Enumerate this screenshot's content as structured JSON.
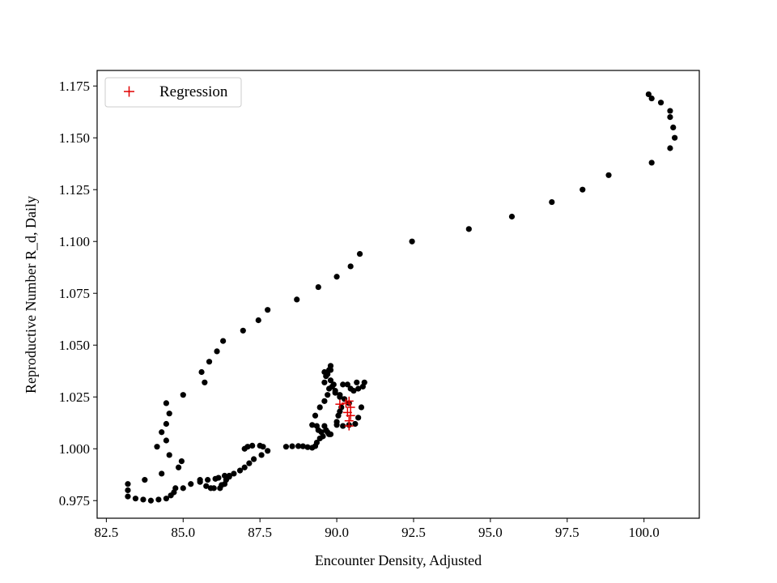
{
  "chart_data": {
    "type": "scatter",
    "xlabel": "Encounter Density, Adjusted",
    "ylabel": "Reproductive Number R_d, Daily",
    "xlim": [
      82.2,
      101.8
    ],
    "ylim": [
      0.9665,
      1.1825
    ],
    "xticks": [
      82.5,
      85.0,
      87.5,
      90.0,
      92.5,
      95.0,
      97.5,
      100.0
    ],
    "xtick_labels": [
      "82.5",
      "85.0",
      "87.5",
      "90.0",
      "92.5",
      "95.0",
      "97.5",
      "100.0"
    ],
    "yticks": [
      0.975,
      1.0,
      1.025,
      1.05,
      1.075,
      1.1,
      1.125,
      1.15,
      1.175
    ],
    "ytick_labels": [
      "0.975",
      "1.000",
      "1.025",
      "1.050",
      "1.075",
      "1.100",
      "1.125",
      "1.150",
      "1.175"
    ],
    "grid": false,
    "legend": {
      "placement": "top-left",
      "entries": [
        "Regression"
      ]
    },
    "series": [
      {
        "marker": "dot",
        "color": "#000000",
        "points": [
          [
            101.0,
            1.15
          ],
          [
            100.95,
            1.155
          ],
          [
            100.85,
            1.16
          ],
          [
            100.85,
            1.163
          ],
          [
            100.55,
            1.167
          ],
          [
            100.25,
            1.169
          ],
          [
            100.15,
            1.171
          ],
          [
            100.85,
            1.145
          ],
          [
            100.25,
            1.138
          ],
          [
            98.85,
            1.132
          ],
          [
            98.0,
            1.125
          ],
          [
            97.0,
            1.119
          ],
          [
            95.7,
            1.112
          ],
          [
            94.3,
            1.106
          ],
          [
            92.45,
            1.1
          ],
          [
            90.75,
            1.094
          ],
          [
            90.45,
            1.088
          ],
          [
            90.0,
            1.083
          ],
          [
            89.4,
            1.078
          ],
          [
            88.7,
            1.072
          ],
          [
            87.75,
            1.067
          ],
          [
            87.45,
            1.062
          ],
          [
            86.95,
            1.057
          ],
          [
            86.3,
            1.052
          ],
          [
            86.1,
            1.047
          ],
          [
            85.85,
            1.042
          ],
          [
            85.6,
            1.037
          ],
          [
            85.7,
            1.032
          ],
          [
            85.0,
            1.026
          ],
          [
            84.45,
            1.022
          ],
          [
            84.55,
            1.017
          ],
          [
            84.45,
            1.012
          ],
          [
            84.3,
            1.008
          ],
          [
            84.45,
            1.004
          ],
          [
            84.15,
            1.001
          ],
          [
            84.55,
            0.997
          ],
          [
            84.95,
            0.994
          ],
          [
            84.85,
            0.991
          ],
          [
            84.3,
            0.988
          ],
          [
            83.75,
            0.985
          ],
          [
            83.2,
            0.983
          ],
          [
            83.2,
            0.98
          ],
          [
            83.2,
            0.977
          ],
          [
            83.45,
            0.976
          ],
          [
            83.7,
            0.9755
          ],
          [
            83.95,
            0.975
          ],
          [
            84.2,
            0.9755
          ],
          [
            84.45,
            0.976
          ],
          [
            84.6,
            0.9775
          ],
          [
            84.7,
            0.979
          ],
          [
            84.75,
            0.981
          ],
          [
            85.0,
            0.981
          ],
          [
            85.25,
            0.983
          ],
          [
            85.55,
            0.984
          ],
          [
            85.55,
            0.985
          ],
          [
            85.8,
            0.985
          ],
          [
            86.05,
            0.9855
          ],
          [
            86.15,
            0.986
          ],
          [
            86.35,
            0.987
          ],
          [
            86.5,
            0.987
          ],
          [
            86.65,
            0.988
          ],
          [
            86.85,
            0.9895
          ],
          [
            87.0,
            0.991
          ],
          [
            87.15,
            0.993
          ],
          [
            87.3,
            0.995
          ],
          [
            87.55,
            0.997
          ],
          [
            87.75,
            0.999
          ],
          [
            87.0,
            1.0
          ],
          [
            87.1,
            1.001
          ],
          [
            87.25,
            1.0015
          ],
          [
            87.5,
            1.0015
          ],
          [
            87.6,
            1.001
          ],
          [
            85.75,
            0.982
          ],
          [
            85.9,
            0.981
          ],
          [
            86.0,
            0.981
          ],
          [
            86.2,
            0.981
          ],
          [
            86.35,
            0.983
          ],
          [
            86.25,
            0.9825
          ],
          [
            86.4,
            0.985
          ],
          [
            86.5,
            0.9865
          ],
          [
            88.35,
            1.001
          ],
          [
            88.55,
            1.0012
          ],
          [
            88.75,
            1.0013
          ],
          [
            88.9,
            1.0012
          ],
          [
            89.05,
            1.0008
          ],
          [
            89.2,
            1.0005
          ],
          [
            89.3,
            1.0013
          ],
          [
            89.35,
            1.003
          ],
          [
            89.45,
            1.005
          ],
          [
            89.55,
            1.006
          ],
          [
            89.7,
            1.008
          ],
          [
            89.8,
            1.007
          ],
          [
            89.4,
            1.009
          ],
          [
            89.5,
            1.008
          ],
          [
            89.65,
            1.009
          ],
          [
            89.75,
            1.007
          ],
          [
            89.6,
            1.011
          ],
          [
            89.35,
            1.011
          ],
          [
            89.2,
            1.0115
          ],
          [
            89.3,
            1.016
          ],
          [
            89.45,
            1.02
          ],
          [
            89.6,
            1.023
          ],
          [
            89.7,
            1.026
          ],
          [
            89.75,
            1.029
          ],
          [
            89.6,
            1.032
          ],
          [
            89.65,
            1.035
          ],
          [
            89.75,
            1.038
          ],
          [
            89.8,
            1.04
          ],
          [
            89.7,
            1.036
          ],
          [
            89.8,
            1.033
          ],
          [
            89.85,
            1.03
          ],
          [
            89.95,
            1.028
          ],
          [
            90.1,
            1.026
          ],
          [
            90.25,
            1.024
          ],
          [
            90.4,
            1.022
          ],
          [
            90.15,
            1.02
          ],
          [
            90.1,
            1.018
          ],
          [
            90.05,
            1.016
          ],
          [
            90.0,
            1.013
          ],
          [
            90.0,
            1.0115
          ],
          [
            90.2,
            1.011
          ],
          [
            90.4,
            1.0115
          ],
          [
            90.6,
            1.012
          ],
          [
            90.7,
            1.015
          ],
          [
            90.8,
            1.02
          ],
          [
            90.55,
            1.028
          ],
          [
            90.7,
            1.029
          ],
          [
            90.85,
            1.03
          ],
          [
            90.65,
            1.032
          ],
          [
            90.9,
            1.032
          ],
          [
            90.45,
            1.029
          ],
          [
            90.35,
            1.031
          ],
          [
            90.2,
            1.031
          ],
          [
            89.9,
            1.031
          ],
          [
            89.95,
            1.027
          ],
          [
            90.1,
            1.025
          ],
          [
            89.6,
            1.037
          ],
          [
            89.8,
            1.038
          ]
        ]
      },
      {
        "name": "Regression",
        "marker": "plus",
        "color": "#e00000",
        "points": [
          [
            90.1,
            1.0215
          ],
          [
            90.3,
            1.022
          ],
          [
            90.4,
            1.023
          ],
          [
            90.45,
            1.02
          ],
          [
            90.35,
            1.0175
          ],
          [
            90.45,
            1.016
          ],
          [
            90.4,
            1.0135
          ],
          [
            90.4,
            1.011
          ]
        ]
      }
    ]
  }
}
